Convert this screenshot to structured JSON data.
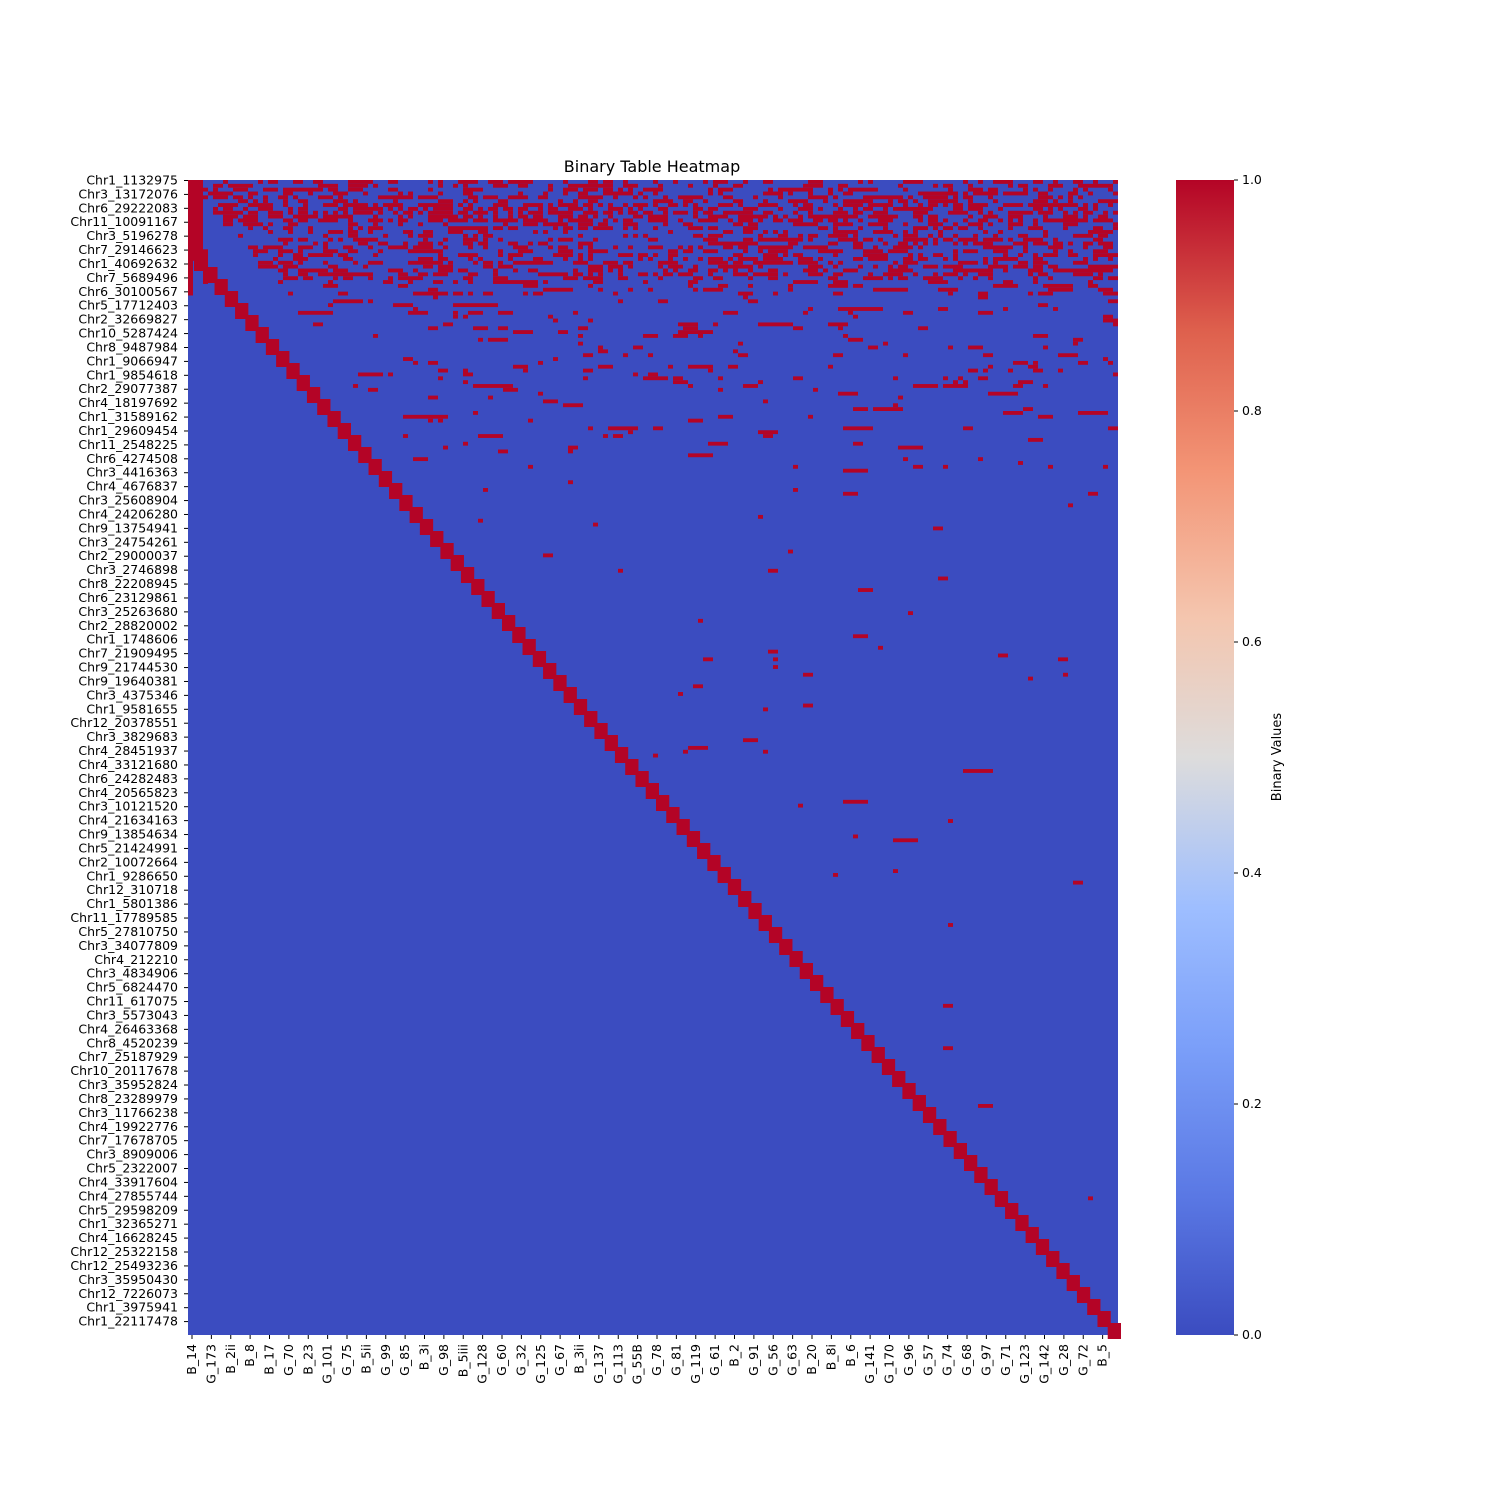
{
  "chart_data": {
    "type": "heatmap",
    "title": "Binary Table Heatmap",
    "xlabel": "",
    "ylabel": "",
    "value_range": [
      0,
      1
    ],
    "colormap": "coolwarm",
    "colors": {
      "low": "#3b4cc0",
      "mid": "#dddcdc",
      "high": "#b40426"
    },
    "colorbar": {
      "label": "Binary Values",
      "ticks": [
        "0.0",
        "0.2",
        "0.4",
        "0.6",
        "0.8",
        "1.0"
      ],
      "tick_values": [
        0.0,
        0.2,
        0.4,
        0.6,
        0.8,
        1.0
      ]
    },
    "x_tick_labels": [
      "B_14",
      "G_173",
      "B_2ii",
      "B_8",
      "B_17",
      "G_70",
      "B_23",
      "G_101",
      "G_75",
      "B_5ii",
      "G_99",
      "G_85",
      "B_3i",
      "G_98",
      "B_5iii",
      "G_128",
      "G_60",
      "G_32",
      "G_125",
      "G_67",
      "B_3ii",
      "G_137",
      "G_113",
      "G_55B",
      "G_78",
      "G_81",
      "G_119",
      "G_61",
      "B_2",
      "G_91",
      "G_56",
      "G_63",
      "B_20",
      "B_8i",
      "B_6",
      "G_141",
      "G_170",
      "G_96",
      "G_57",
      "G_74",
      "G_68",
      "G_97",
      "G_71",
      "G_123",
      "G_142",
      "G_28",
      "G_72",
      "B_5"
    ],
    "y_tick_labels": [
      "Chr1_1132975",
      "Chr3_13172076",
      "Chr6_29222083",
      "Chr11_10091167",
      "Chr3_5196278",
      "Chr7_29146623",
      "Chr1_40692632",
      "Chr7_5689496",
      "Chr6_30100567",
      "Chr5_17712403",
      "Chr2_32669827",
      "Chr10_5287424",
      "Chr8_9487984",
      "Chr1_9066947",
      "Chr1_9854618",
      "Chr2_29077387",
      "Chr4_18197692",
      "Chr1_31589162",
      "Chr1_29609454",
      "Chr11_2548225",
      "Chr6_4274508",
      "Chr3_4416363",
      "Chr4_4676837",
      "Chr3_25608904",
      "Chr4_24206280",
      "Chr9_13754941",
      "Chr3_24754261",
      "Chr2_29000037",
      "Chr3_2746898",
      "Chr8_22208945",
      "Chr6_23129861",
      "Chr3_25263680",
      "Chr2_28820002",
      "Chr1_1748606",
      "Chr7_21909495",
      "Chr9_21744530",
      "Chr9_19640381",
      "Chr3_4375346",
      "Chr1_9581655",
      "Chr12_20378551",
      "Chr3_3829683",
      "Chr4_28451937",
      "Chr4_33121680",
      "Chr6_24282483",
      "Chr4_20565823",
      "Chr3_10121520",
      "Chr4_21634163",
      "Chr9_13854634",
      "Chr5_21424991",
      "Chr2_10072664",
      "Chr1_9286650",
      "Chr12_310718",
      "Chr1_5801386",
      "Chr11_17789585",
      "Chr5_27810750",
      "Chr3_34077809",
      "Chr4_212210",
      "Chr3_4834906",
      "Chr5_6824470",
      "Chr11_617075",
      "Chr3_5573043",
      "Chr4_26463368",
      "Chr8_4520239",
      "Chr7_25187929",
      "Chr10_20117678",
      "Chr3_35952824",
      "Chr8_23289979",
      "Chr3_11766238",
      "Chr4_19922776",
      "Chr7_17678705",
      "Chr3_8909006",
      "Chr5_2322007",
      "Chr4_33917604",
      "Chr4_27855744",
      "Chr5_29598209",
      "Chr1_32365271",
      "Chr4_16628245",
      "Chr12_25322158",
      "Chr12_25493236",
      "Chr3_35950430",
      "Chr12_7226073",
      "Chr1_3975941",
      "Chr1_22117478"
    ],
    "grid": false,
    "legend": "colorbar-right"
  }
}
